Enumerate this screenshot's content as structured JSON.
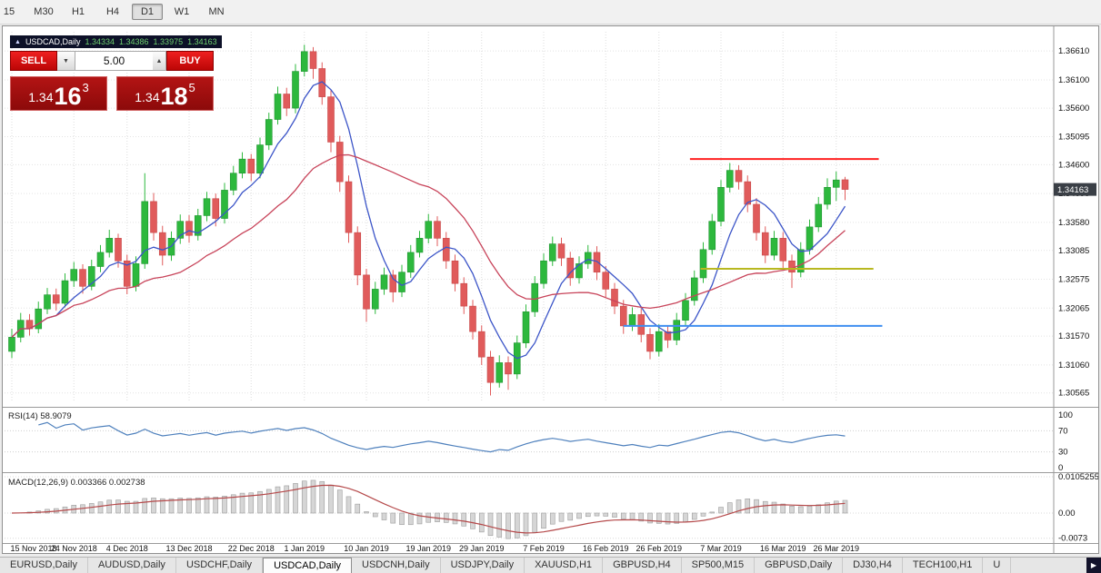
{
  "toolbar": {
    "timeframes": [
      "15",
      "M30",
      "H1",
      "H4",
      "D1",
      "W1",
      "MN"
    ],
    "active": "D1"
  },
  "window": {
    "symbol_label": "USDCAD,Daily",
    "ohlc": {
      "open": "1.34334",
      "high": "1.34386",
      "low": "1.33975",
      "close": "1.34163"
    },
    "trade_panel": {
      "sell_label": "SELL",
      "buy_label": "BUY",
      "volume": "5.00",
      "sell_price": {
        "big": "1.34",
        "pips": "16",
        "pipette": "3"
      },
      "buy_price": {
        "big": "1.34",
        "pips": "18",
        "pipette": "5"
      }
    }
  },
  "chart_data": {
    "type": "candlestick",
    "symbol": "USDCAD",
    "timeframe": "Daily",
    "price_range": {
      "top": 1.3695,
      "bottom": 1.304
    },
    "current_price": "1.34163",
    "y_axis_labels": [
      "1.36610",
      "1.36100",
      "1.35600",
      "1.35095",
      "1.34600",
      "1.34090",
      "1.33580",
      "1.33085",
      "1.32575",
      "1.32065",
      "1.31570",
      "1.31060",
      "1.30565"
    ],
    "x_axis_ticks": [
      {
        "label": "15 Nov 2018",
        "index": 0
      },
      {
        "label": "24 Nov 2018",
        "index": 7
      },
      {
        "label": "4 Dec 2018",
        "index": 13
      },
      {
        "label": "13 Dec 2018",
        "index": 20
      },
      {
        "label": "22 Dec 2018",
        "index": 27
      },
      {
        "label": "1 Jan 2019",
        "index": 33
      },
      {
        "label": "10 Jan 2019",
        "index": 40
      },
      {
        "label": "19 Jan 2019",
        "index": 47
      },
      {
        "label": "29 Jan 2019",
        "index": 53
      },
      {
        "label": "7 Feb 2019",
        "index": 60
      },
      {
        "label": "16 Feb 2019",
        "index": 67
      },
      {
        "label": "26 Feb 2019",
        "index": 73
      },
      {
        "label": "7 Mar 2019",
        "index": 80
      },
      {
        "label": "16 Mar 2019",
        "index": 87
      },
      {
        "label": "26 Mar 2019",
        "index": 93
      }
    ],
    "candles": [
      [
        1.313,
        1.317,
        1.3118,
        1.3155
      ],
      [
        1.3155,
        1.3198,
        1.3146,
        1.3185
      ],
      [
        1.3185,
        1.3196,
        1.3158,
        1.317
      ],
      [
        1.317,
        1.3218,
        1.3162,
        1.3205
      ],
      [
        1.3205,
        1.3242,
        1.3196,
        1.323
      ],
      [
        1.323,
        1.3241,
        1.3202,
        1.3215
      ],
      [
        1.3215,
        1.3268,
        1.3208,
        1.3255
      ],
      [
        1.3255,
        1.3288,
        1.3244,
        1.3275
      ],
      [
        1.3275,
        1.3284,
        1.3232,
        1.3245
      ],
      [
        1.3245,
        1.3292,
        1.3238,
        1.328
      ],
      [
        1.328,
        1.3318,
        1.327,
        1.3305
      ],
      [
        1.3305,
        1.3345,
        1.3296,
        1.333
      ],
      [
        1.333,
        1.3338,
        1.3278,
        1.329
      ],
      [
        1.329,
        1.3301,
        1.3231,
        1.3245
      ],
      [
        1.3245,
        1.3298,
        1.3236,
        1.3285
      ],
      [
        1.3285,
        1.3445,
        1.3276,
        1.3395
      ],
      [
        1.3395,
        1.341,
        1.3326,
        1.334
      ],
      [
        1.334,
        1.3352,
        1.3282,
        1.33
      ],
      [
        1.33,
        1.3342,
        1.329,
        1.333
      ],
      [
        1.333,
        1.3372,
        1.332,
        1.336
      ],
      [
        1.336,
        1.3371,
        1.3322,
        1.3335
      ],
      [
        1.3335,
        1.3382,
        1.3326,
        1.337
      ],
      [
        1.337,
        1.3412,
        1.336,
        1.34
      ],
      [
        1.34,
        1.3409,
        1.3351,
        1.3365
      ],
      [
        1.3365,
        1.3428,
        1.3356,
        1.3415
      ],
      [
        1.3415,
        1.3458,
        1.3406,
        1.3445
      ],
      [
        1.3445,
        1.3482,
        1.3436,
        1.347
      ],
      [
        1.347,
        1.3479,
        1.3431,
        1.3445
      ],
      [
        1.3445,
        1.3508,
        1.3436,
        1.3495
      ],
      [
        1.3495,
        1.3552,
        1.3486,
        1.354
      ],
      [
        1.354,
        1.3598,
        1.3531,
        1.3585
      ],
      [
        1.3585,
        1.3596,
        1.3546,
        1.356
      ],
      [
        1.356,
        1.3638,
        1.3551,
        1.3625
      ],
      [
        1.3625,
        1.3672,
        1.3616,
        1.366
      ],
      [
        1.366,
        1.3668,
        1.3612,
        1.363
      ],
      [
        1.363,
        1.3641,
        1.3566,
        1.358
      ],
      [
        1.358,
        1.3592,
        1.3482,
        1.35
      ],
      [
        1.35,
        1.3511,
        1.3412,
        1.343
      ],
      [
        1.343,
        1.3441,
        1.3322,
        1.334
      ],
      [
        1.334,
        1.3351,
        1.3247,
        1.3265
      ],
      [
        1.3265,
        1.3276,
        1.3182,
        1.3205
      ],
      [
        1.3205,
        1.3253,
        1.3196,
        1.324
      ],
      [
        1.324,
        1.3278,
        1.323,
        1.3265
      ],
      [
        1.3265,
        1.3274,
        1.3217,
        1.3235
      ],
      [
        1.3235,
        1.3283,
        1.3226,
        1.327
      ],
      [
        1.327,
        1.3318,
        1.326,
        1.3305
      ],
      [
        1.3305,
        1.3343,
        1.3296,
        1.333
      ],
      [
        1.333,
        1.3373,
        1.3321,
        1.336
      ],
      [
        1.336,
        1.3369,
        1.3316,
        1.333
      ],
      [
        1.333,
        1.3341,
        1.3276,
        1.329
      ],
      [
        1.329,
        1.3301,
        1.3236,
        1.325
      ],
      [
        1.325,
        1.3261,
        1.3196,
        1.321
      ],
      [
        1.321,
        1.3221,
        1.3151,
        1.3165
      ],
      [
        1.3165,
        1.3176,
        1.3106,
        1.312
      ],
      [
        1.312,
        1.3131,
        1.3052,
        1.3075
      ],
      [
        1.3075,
        1.3123,
        1.3066,
        1.311
      ],
      [
        1.311,
        1.3121,
        1.3062,
        1.309
      ],
      [
        1.309,
        1.3158,
        1.3081,
        1.3145
      ],
      [
        1.3145,
        1.3213,
        1.3136,
        1.32
      ],
      [
        1.32,
        1.3263,
        1.3191,
        1.325
      ],
      [
        1.325,
        1.3303,
        1.3241,
        1.329
      ],
      [
        1.329,
        1.3333,
        1.3281,
        1.332
      ],
      [
        1.332,
        1.3331,
        1.3281,
        1.3295
      ],
      [
        1.3295,
        1.3306,
        1.3246,
        1.326
      ],
      [
        1.326,
        1.3298,
        1.325,
        1.3285
      ],
      [
        1.3285,
        1.3318,
        1.3276,
        1.3305
      ],
      [
        1.3305,
        1.3316,
        1.3256,
        1.327
      ],
      [
        1.327,
        1.3281,
        1.3226,
        1.324
      ],
      [
        1.324,
        1.3251,
        1.3196,
        1.321
      ],
      [
        1.321,
        1.3221,
        1.3161,
        1.3175
      ],
      [
        1.3175,
        1.3208,
        1.3166,
        1.3195
      ],
      [
        1.3195,
        1.3206,
        1.3146,
        1.316
      ],
      [
        1.316,
        1.3171,
        1.3116,
        1.313
      ],
      [
        1.313,
        1.3178,
        1.3121,
        1.3165
      ],
      [
        1.3165,
        1.3176,
        1.3136,
        1.315
      ],
      [
        1.315,
        1.3198,
        1.3141,
        1.3185
      ],
      [
        1.3185,
        1.3233,
        1.3176,
        1.322
      ],
      [
        1.322,
        1.3273,
        1.3211,
        1.326
      ],
      [
        1.326,
        1.3323,
        1.3251,
        1.331
      ],
      [
        1.331,
        1.3373,
        1.3301,
        1.336
      ],
      [
        1.336,
        1.3433,
        1.3351,
        1.342
      ],
      [
        1.342,
        1.3463,
        1.3411,
        1.345
      ],
      [
        1.345,
        1.3459,
        1.3416,
        1.343
      ],
      [
        1.343,
        1.3441,
        1.3376,
        1.339
      ],
      [
        1.339,
        1.3401,
        1.3326,
        1.334
      ],
      [
        1.334,
        1.3351,
        1.3286,
        1.33
      ],
      [
        1.33,
        1.3343,
        1.3291,
        1.333
      ],
      [
        1.333,
        1.3341,
        1.3276,
        1.329
      ],
      [
        1.329,
        1.3301,
        1.3242,
        1.327
      ],
      [
        1.327,
        1.3323,
        1.3261,
        1.331
      ],
      [
        1.331,
        1.3363,
        1.3301,
        1.335
      ],
      [
        1.335,
        1.3403,
        1.3341,
        1.339
      ],
      [
        1.339,
        1.3436,
        1.3381,
        1.342
      ],
      [
        1.342,
        1.3448,
        1.3396,
        1.3433
      ],
      [
        1.34334,
        1.34386,
        1.33975,
        1.34163
      ]
    ],
    "candle_colors": {
      "up": "#2db83d",
      "down": "#e05b5b"
    },
    "moving_averages": [
      {
        "type": "sma",
        "period": 6,
        "color": "#3c55c8"
      },
      {
        "type": "sma",
        "period": 20,
        "color": "#c8445a"
      }
    ],
    "trend_lines": [
      {
        "name": "resistance",
        "color": "#ff2020",
        "price": 1.347,
        "from_index": 76.5,
        "to_index": 97.8
      },
      {
        "name": "support-mid",
        "color": "#b8b820",
        "price": 1.3276,
        "from_index": 77.7,
        "to_index": 97.2
      },
      {
        "name": "support-low",
        "color": "#3f8ef0",
        "price": 1.3175,
        "from_index": 69.0,
        "to_index": 98.2
      }
    ]
  },
  "rsi": {
    "label": "RSI(14) 58.9079",
    "period": 14,
    "color": "#4f81bd",
    "levels": [
      {
        "label": "100",
        "value": 100
      },
      {
        "label": "70",
        "value": 70
      },
      {
        "label": "30",
        "value": 30
      },
      {
        "label": "0",
        "value": 0
      }
    ]
  },
  "macd": {
    "label": "MACD(12,26,9) 0.003366 0.002738",
    "fast": 12,
    "slow": 26,
    "signal": 9,
    "histogram_color": "#d6d6d6",
    "signal_color": "#b5494a",
    "levels": [
      {
        "label": "0.0105255",
        "value": 0.0105255
      },
      {
        "label": "0.00",
        "value": 0
      },
      {
        "label": "-0.0073",
        "value": -0.0073
      }
    ]
  },
  "tabs": {
    "items": [
      "EURUSD,Daily",
      "AUDUSD,Daily",
      "USDCHF,Daily",
      "USDCAD,Daily",
      "USDCNH,Daily",
      "USDJPY,Daily",
      "XAUUSD,H1",
      "GBPUSD,H4",
      "SP500,M15",
      "GBPUSD,Daily",
      "DJ30,H4",
      "TECH100,H1",
      "U"
    ],
    "active": "USDCAD,Daily"
  }
}
